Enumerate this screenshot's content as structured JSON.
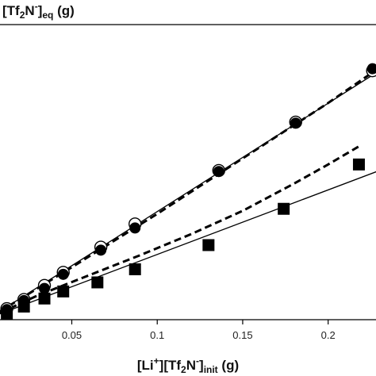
{
  "chart_data": {
    "type": "scatter",
    "title": "",
    "ylabel": {
      "open": "[Tf",
      "sub1": "2",
      "mid": "N",
      "sup": "-",
      "close": "]",
      "sub2": "eq",
      "unit": " (g)"
    },
    "xlabel": {
      "a": "[Li",
      "sup1": "+",
      "b": "][Tf",
      "sub1": "2",
      "c": "N",
      "sup2": "-",
      "d": "]",
      "sub2": "init",
      "unit": " (g)"
    },
    "xlim": [
      0.008,
      0.228
    ],
    "ylim": [
      -0.002,
      0.29
    ],
    "xticks": [
      {
        "value": 0.05,
        "label": "0.05"
      },
      {
        "value": 0.1,
        "label": "0.1"
      },
      {
        "value": 0.15,
        "label": "0.15"
      },
      {
        "value": 0.2,
        "label": "0.2"
      }
    ],
    "grid": false,
    "legend": "none",
    "series": [
      {
        "marker": "open-circle",
        "points": [
          [
            0.012,
            0.009
          ],
          [
            0.022,
            0.018
          ],
          [
            0.034,
            0.032
          ],
          [
            0.045,
            0.045
          ],
          [
            0.067,
            0.07
          ],
          [
            0.087,
            0.093
          ],
          [
            0.136,
            0.146
          ],
          [
            0.181,
            0.194
          ],
          [
            0.226,
            0.245
          ]
        ]
      },
      {
        "marker": "filled-circle",
        "points": [
          [
            0.012,
            0.008
          ],
          [
            0.022,
            0.017
          ],
          [
            0.034,
            0.029
          ],
          [
            0.045,
            0.043
          ],
          [
            0.067,
            0.067
          ],
          [
            0.087,
            0.089
          ],
          [
            0.136,
            0.145
          ],
          [
            0.181,
            0.193
          ],
          [
            0.226,
            0.247
          ]
        ]
      },
      {
        "marker": "filled-square",
        "points": [
          [
            0.012,
            0.004
          ],
          [
            0.022,
            0.011
          ],
          [
            0.034,
            0.019
          ],
          [
            0.045,
            0.026
          ],
          [
            0.065,
            0.035
          ],
          [
            0.087,
            0.048
          ],
          [
            0.13,
            0.072
          ],
          [
            0.174,
            0.108
          ],
          [
            0.218,
            0.152
          ]
        ]
      }
    ],
    "lines": [
      {
        "style": "solid",
        "width": 1.3,
        "points": [
          [
            0.002,
            0.0
          ],
          [
            0.23,
            0.245
          ]
        ]
      },
      {
        "style": "dashed",
        "width": 3,
        "points": [
          [
            0.002,
            0.0
          ],
          [
            0.05,
            0.05
          ],
          [
            0.1,
            0.103
          ],
          [
            0.15,
            0.158
          ],
          [
            0.2,
            0.213
          ],
          [
            0.23,
            0.248
          ]
        ]
      },
      {
        "style": "dashed",
        "width": 3,
        "points": [
          [
            0.002,
            0.0
          ],
          [
            0.03,
            0.022
          ],
          [
            0.06,
            0.042
          ],
          [
            0.09,
            0.062
          ],
          [
            0.12,
            0.083
          ],
          [
            0.15,
            0.106
          ],
          [
            0.18,
            0.133
          ],
          [
            0.2,
            0.152
          ],
          [
            0.218,
            0.17
          ]
        ]
      },
      {
        "style": "solid",
        "width": 1.3,
        "points": [
          [
            0.002,
            0.0
          ],
          [
            0.23,
            0.146
          ]
        ]
      }
    ]
  }
}
